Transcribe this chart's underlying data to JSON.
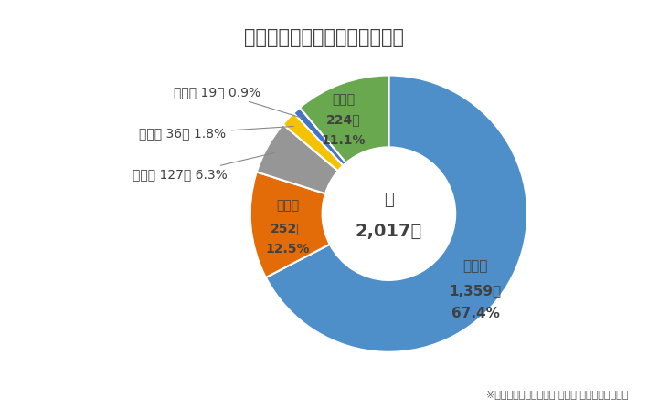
{
  "title": "罪種別の発生状況（令和４年）",
  "center_label_line1": "計",
  "center_label_line2": "2,017件",
  "footnote": "※鳥取県警察「令和４年 刑法犯 認知・検挙状況」",
  "slices": [
    {
      "label": "窃盗犯",
      "count": "1,359件",
      "pct": "67.4%",
      "value": 1359,
      "color": "#4E8FCA"
    },
    {
      "label": "粗暴犯",
      "count": "252件",
      "pct": "12.5%",
      "value": 252,
      "color": "#E36C09"
    },
    {
      "label": "知能犯",
      "count": "127件",
      "pct": "6.3%",
      "value": 127,
      "color": "#969696"
    },
    {
      "label": "風俗犯",
      "count": "36件",
      "pct": "1.8%",
      "value": 36,
      "color": "#F5C200"
    },
    {
      "label": "凶悪犯",
      "count": "19件",
      "pct": "0.9%",
      "value": 19,
      "color": "#4472C4"
    },
    {
      "label": "その他",
      "count": "224件",
      "pct": "11.1%",
      "value": 224,
      "color": "#6AA84F"
    }
  ],
  "background_color": "#FFFFFF",
  "title_fontsize": 15,
  "annotation_fontsize": 10,
  "inner_label_fontsize": 13,
  "slice_label_fontsize": 11,
  "text_color": "#404040"
}
